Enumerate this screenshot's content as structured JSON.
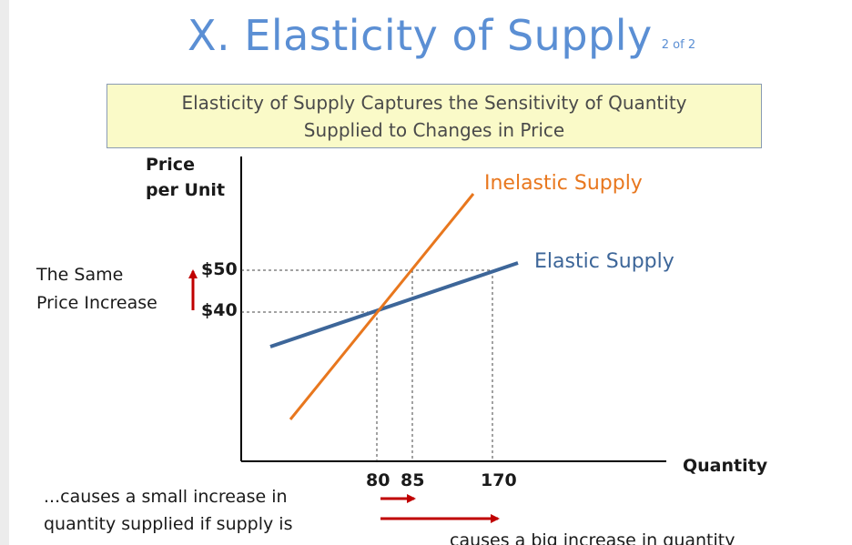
{
  "header": {
    "title": "X. Elasticity of Supply",
    "page_indicator": "2 of 2"
  },
  "banner": {
    "line1": "Elasticity of Supply Captures the Sensitivity of Quantity",
    "line2": "Supplied to Changes in Price"
  },
  "axes": {
    "y_label_line1": "Price",
    "y_label_line2": "per Unit",
    "x_label": "Quantity",
    "price_ticks": [
      "$50",
      "$40"
    ],
    "quantity_ticks": [
      "80",
      "85",
      "170"
    ]
  },
  "curves": {
    "inelastic": {
      "label": "Inelastic Supply",
      "color": "#e8771e"
    },
    "elastic": {
      "label": "Elastic Supply",
      "color": "#3d6699"
    }
  },
  "annotations": {
    "price_increase_line1": "The Same",
    "price_increase_line2": "Price Increase",
    "small_increase_line1": "...causes a small increase in",
    "small_increase_line2": "quantity supplied if supply is",
    "big_increase": "causes a big increase in quantity",
    "arrow_color": "#c00000"
  },
  "colors": {
    "title": "#5b8fd4",
    "banner_bg": "#fafac8"
  }
}
